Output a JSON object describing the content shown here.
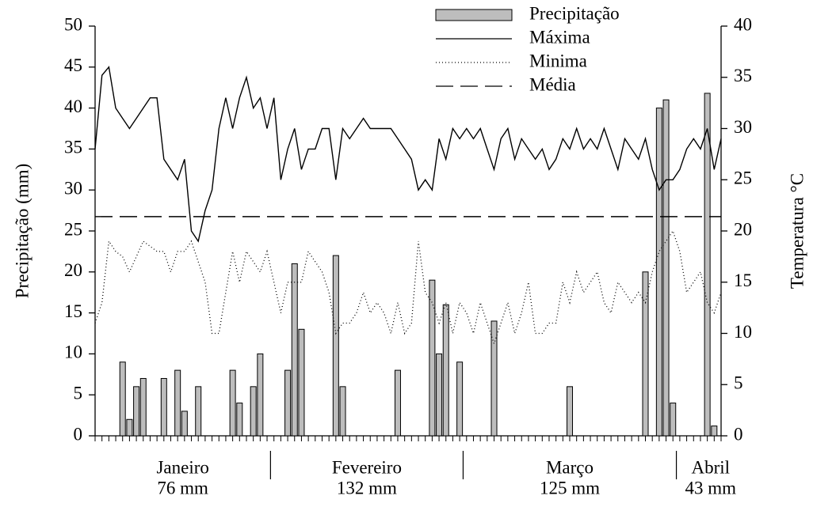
{
  "chart_data": {
    "type": "combo",
    "y_label": "Precipitação (mm)",
    "y2_label": "Temperatura °C",
    "categories": [
      null,
      null,
      null,
      null,
      null,
      null,
      null,
      null,
      null,
      null,
      null,
      null,
      null,
      null,
      null,
      null,
      null,
      null,
      null,
      null,
      null,
      null,
      null,
      null,
      null,
      null,
      null,
      null,
      null,
      null,
      null,
      null,
      null,
      null,
      null,
      null,
      null,
      null,
      null,
      null,
      null,
      null,
      null,
      null,
      null,
      null,
      null,
      null,
      null,
      null,
      null,
      null,
      null,
      null,
      null,
      null,
      null,
      null,
      null,
      null,
      null,
      null,
      null,
      null,
      null,
      null,
      null,
      null,
      null,
      null,
      null,
      null,
      null,
      null,
      null,
      null,
      null,
      null,
      null,
      null,
      null,
      null,
      null,
      null,
      null,
      null,
      null,
      null,
      null,
      null,
      null,
      null
    ],
    "months": [
      {
        "label": "Janeiro",
        "total": "76 mm",
        "days": 26
      },
      {
        "label": "Fevereiro",
        "total": "132 mm",
        "days": 28
      },
      {
        "label": "Março",
        "total": "125 mm",
        "days": 31
      },
      {
        "label": "Abril",
        "total": "43 mm",
        "days": 7
      }
    ],
    "ylim": [
      0,
      50
    ],
    "yticks": [
      0,
      5,
      10,
      15,
      20,
      25,
      30,
      35,
      40,
      45,
      50
    ],
    "y2lim": [
      0,
      40
    ],
    "y2ticks": [
      0,
      5,
      10,
      15,
      20,
      25,
      30,
      35,
      40
    ],
    "legend": "top-right",
    "series": [
      {
        "name": "Precipitação",
        "type": "bar",
        "color": "#bdbdbd",
        "values": [
          0,
          0,
          0,
          0,
          9,
          2,
          6,
          7,
          0,
          0,
          7,
          0,
          8,
          3,
          0,
          6,
          0,
          0,
          0,
          0,
          8,
          4,
          0,
          6,
          10,
          0,
          0,
          0,
          8,
          21,
          13,
          0,
          0,
          0,
          0,
          22,
          6,
          0,
          0,
          0,
          0,
          0,
          0,
          0,
          8,
          0,
          0,
          0,
          0,
          19,
          10,
          16,
          0,
          9,
          0,
          0,
          0,
          0,
          14,
          0,
          0,
          0,
          0,
          0,
          0,
          0,
          0,
          0,
          0,
          6,
          0,
          0,
          0,
          0,
          0,
          0,
          0,
          0,
          0,
          0,
          20,
          0,
          40,
          41,
          4,
          0,
          0,
          0,
          0,
          41.8,
          1.2,
          0
        ]
      },
      {
        "name": "Máxima",
        "type": "line",
        "axis": "y2",
        "style": "solid",
        "color": "#000000",
        "values": [
          28,
          35.2,
          36,
          32,
          31,
          30,
          31,
          32,
          33,
          33,
          27,
          26,
          25,
          27,
          20,
          19,
          22,
          24,
          30,
          33,
          30,
          33,
          35,
          32,
          33,
          30,
          33,
          25,
          28,
          30,
          26,
          28,
          28,
          30,
          30,
          25,
          30,
          29,
          30,
          31,
          30,
          30,
          30,
          30,
          29,
          28,
          27,
          24,
          25,
          24,
          29,
          27,
          30,
          29,
          30,
          29,
          30,
          28,
          26,
          29,
          30,
          27,
          29,
          28,
          27,
          28,
          26,
          27,
          29,
          28,
          30,
          28,
          29,
          28,
          30,
          28,
          26,
          29,
          28,
          27,
          29,
          26,
          24,
          25,
          25,
          26,
          28,
          29,
          28,
          30,
          26,
          29
        ]
      },
      {
        "name": "Minima",
        "type": "line",
        "axis": "y2",
        "style": "dotted",
        "color": "#000000",
        "values": [
          11,
          13,
          19,
          18,
          17.5,
          16,
          17.5,
          19,
          18.5,
          18,
          18,
          16,
          18,
          18,
          19,
          17,
          15,
          10,
          10,
          14,
          18,
          15,
          18,
          17,
          16,
          18,
          15,
          12,
          15,
          15,
          15,
          18,
          17,
          16,
          14,
          10,
          11,
          11,
          12,
          14,
          12,
          13,
          12,
          10,
          13,
          10,
          11,
          19,
          14,
          13,
          11,
          13,
          10,
          13,
          12,
          10,
          13,
          11,
          9,
          11,
          13,
          10,
          12,
          15,
          10,
          10,
          11,
          11,
          15,
          13,
          16,
          14,
          15,
          16,
          13,
          12,
          15,
          14,
          13,
          14,
          13,
          16,
          18,
          19,
          20,
          18,
          14,
          15,
          16,
          13,
          12,
          14
        ]
      },
      {
        "name": "Média",
        "type": "hline",
        "axis": "y2",
        "style": "dashed",
        "color": "#000000",
        "value": 21.4
      }
    ]
  }
}
